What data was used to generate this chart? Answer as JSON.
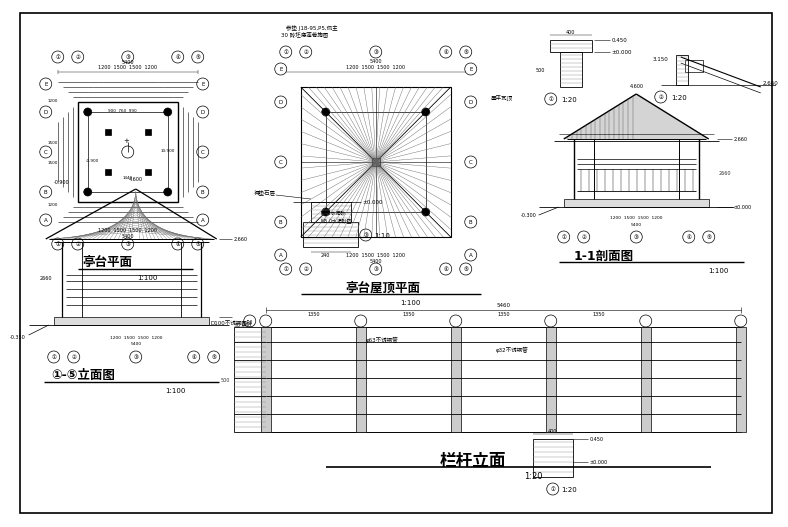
{
  "bg_color": "#ffffff",
  "line_color": "#000000",
  "sections": {
    "pavilion_plan_title": "亭台平面",
    "roof_plan_title": "亭台屋顶平面",
    "elevation_title": "①-⑤立面图",
    "section_title": "1-1剖面图",
    "railing_title": "栏杆立面"
  },
  "scales": {
    "s100": "1:100",
    "s20": "1:20",
    "s10": "1:10"
  },
  "labels": {
    "note1": "参垫 J18-95,P5,侃主",
    "note2": "30 砖坯痣莲肴施图",
    "note3": "屋平瓦顶",
    "note4": "褥垫石层",
    "note5": "M10水泥砂",
    "note6": "M5.0水泥砂垫",
    "ball": "D100不锈钢圆球",
    "pipe63": "φ63不锈钢管",
    "pipe32": "φ32不锈钢管"
  },
  "dims": {
    "w1200": "1200",
    "w1500": "1500",
    "w5400": "5400",
    "w5460": "5460",
    "w1350": "1350",
    "w400": "400",
    "w240": "240",
    "h0450": "0.450",
    "h0000": "±0.000",
    "h0300": "-0.300",
    "h0350": "-0.350",
    "h2660": "2.660",
    "h4600": "4.600",
    "h3150": "3.150"
  }
}
